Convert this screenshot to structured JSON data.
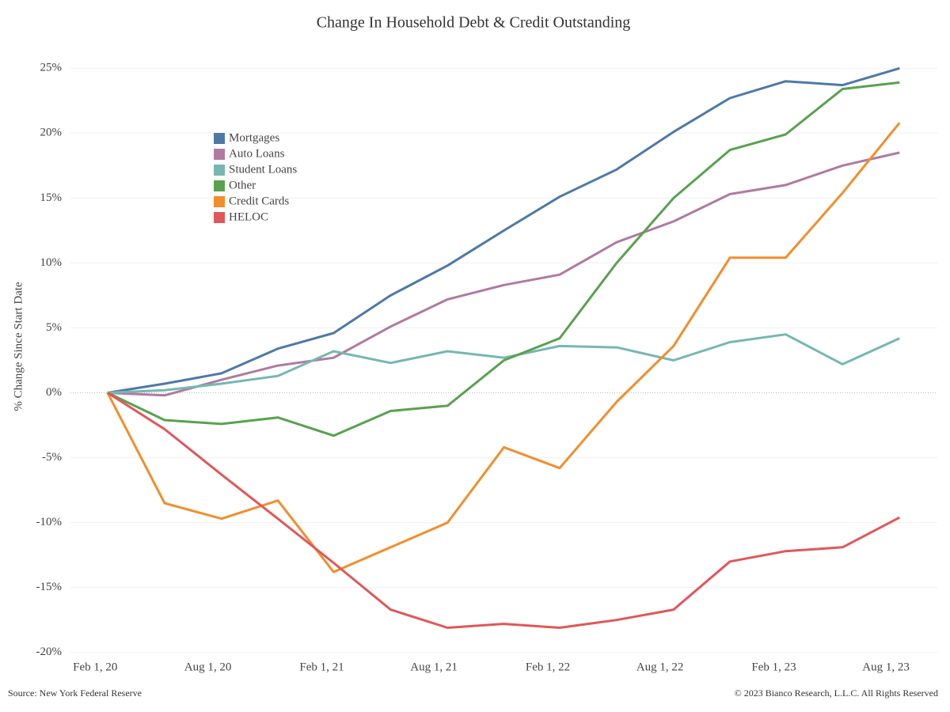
{
  "chart_data": {
    "type": "line",
    "title": "Change In Household Debt & Credit Outstanding",
    "y_label": "% Change Since Start Date",
    "source": "Source: New York Federal Reserve",
    "copyright": "© 2023 Bianco Research, L.L.C. All Rights Reserved",
    "x": [
      "2020-03-01",
      "2020-06-01",
      "2020-09-01",
      "2020-12-01",
      "2021-03-01",
      "2021-06-01",
      "2021-09-01",
      "2021-12-01",
      "2022-03-01",
      "2022-06-01",
      "2022-09-01",
      "2022-12-01",
      "2023-03-01",
      "2023-06-01",
      "2023-09-01"
    ],
    "xlim": [
      "2020-01-01",
      "2023-11-01"
    ],
    "xticks": [
      {
        "value": "2020-02-01",
        "label": "Feb 1, 20"
      },
      {
        "value": "2020-08-01",
        "label": "Aug 1, 20"
      },
      {
        "value": "2021-02-01",
        "label": "Feb 1, 21"
      },
      {
        "value": "2021-08-01",
        "label": "Aug 1, 21"
      },
      {
        "value": "2022-02-01",
        "label": "Feb 1, 22"
      },
      {
        "value": "2022-08-01",
        "label": "Aug 1, 22"
      },
      {
        "value": "2023-02-01",
        "label": "Feb 1, 23"
      },
      {
        "value": "2023-08-01",
        "label": "Aug 1, 23"
      }
    ],
    "ylim": [
      -20.2,
      26.6
    ],
    "yticks": [
      {
        "value": -20,
        "label": "-20%"
      },
      {
        "value": -15,
        "label": "-15%"
      },
      {
        "value": -10,
        "label": "-10%"
      },
      {
        "value": -5,
        "label": "-5%"
      },
      {
        "value": 0,
        "label": "0%"
      },
      {
        "value": 5,
        "label": "5%"
      },
      {
        "value": 10,
        "label": "10%"
      },
      {
        "value": 15,
        "label": "15%"
      },
      {
        "value": 20,
        "label": "20%"
      },
      {
        "value": 25,
        "label": "25%"
      }
    ],
    "grid": true,
    "series": [
      {
        "name": "Mortgages",
        "color": "#4e79a7",
        "values": [
          0,
          0.7,
          1.5,
          3.4,
          4.6,
          7.5,
          9.8,
          12.5,
          15.1,
          17.2,
          20.1,
          22.7,
          24.0,
          23.7,
          25.0
        ]
      },
      {
        "name": "Auto Loans",
        "color": "#b07aa1",
        "values": [
          0,
          -0.2,
          1.0,
          2.1,
          2.7,
          5.1,
          7.2,
          8.3,
          9.1,
          11.6,
          13.2,
          15.3,
          16.0,
          17.5,
          18.5
        ]
      },
      {
        "name": "Student Loans",
        "color": "#76b7b2",
        "values": [
          0,
          0.2,
          0.7,
          1.3,
          3.2,
          2.3,
          3.2,
          2.7,
          3.6,
          3.5,
          2.5,
          3.9,
          4.5,
          2.2,
          4.2
        ]
      },
      {
        "name": "Other",
        "color": "#59a14f",
        "values": [
          0,
          -2.1,
          -2.4,
          -1.9,
          -3.3,
          -1.4,
          -1.0,
          2.5,
          4.2,
          10.0,
          15.0,
          18.7,
          19.9,
          23.4,
          23.9
        ]
      },
      {
        "name": "Credit Cards",
        "color": "#f28e2b",
        "values": [
          0,
          -8.5,
          -9.7,
          -8.3,
          -13.8,
          -11.9,
          -10.0,
          -4.2,
          -5.8,
          -0.7,
          3.6,
          10.4,
          10.4,
          15.4,
          20.8
        ]
      },
      {
        "name": "HELOC",
        "color": "#e15759",
        "values": [
          0,
          -2.8,
          -6.3,
          -9.7,
          -13.1,
          -16.7,
          -18.1,
          -17.8,
          -18.1,
          -17.5,
          -16.7,
          -13.0,
          -12.2,
          -11.9,
          -9.6
        ]
      }
    ]
  }
}
